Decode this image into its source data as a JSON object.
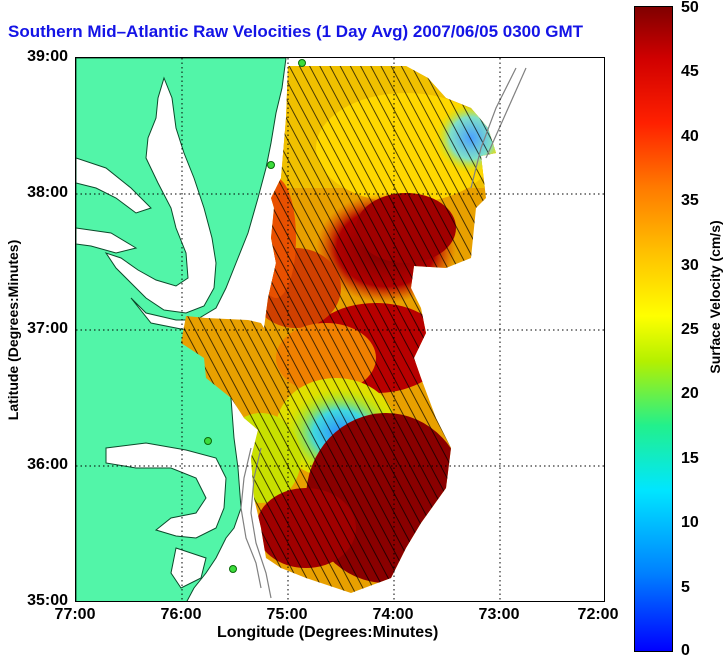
{
  "title": "Southern Mid–Atlantic Raw Velocities (1 Day Avg) 2007/06/05 0300 GMT",
  "x_axis": {
    "label": "Longitude (Degrees:Minutes)",
    "ticks": [
      "77:00",
      "76:00",
      "75:00",
      "74:00",
      "73:00",
      "72:00"
    ]
  },
  "y_axis": {
    "label": "Latitude (Degrees:Minutes)",
    "ticks": [
      "39:00",
      "38:00",
      "37:00",
      "36:00",
      "35:00"
    ]
  },
  "colorbar": {
    "label": "Surface Velocity (cm/s)",
    "ticks": [
      "50",
      "45",
      "40",
      "35",
      "30",
      "25",
      "20",
      "15",
      "10",
      "5",
      "0"
    ],
    "range": [
      0,
      50
    ]
  },
  "colors": {
    "title": "#1414e6",
    "land": "#52f5a8",
    "water": "#ffffff",
    "arrows": "#000000"
  },
  "map": {
    "lon_range": [
      -77,
      -72
    ],
    "lat_range": [
      35,
      39
    ],
    "grid": "dotted"
  }
}
